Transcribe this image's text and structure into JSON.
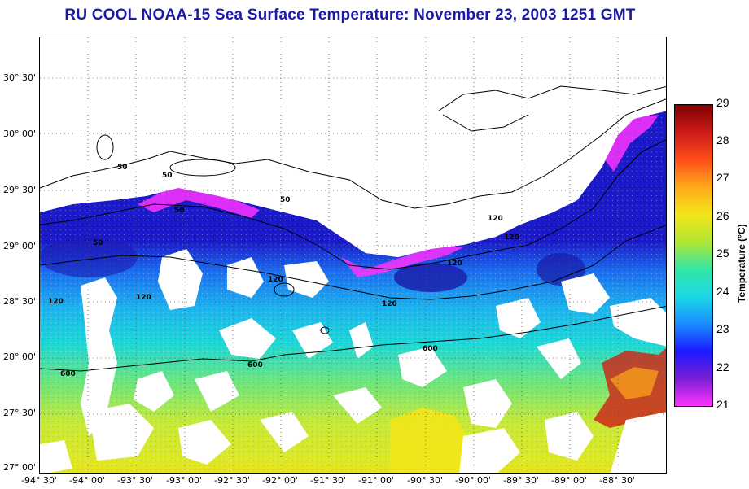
{
  "title": "RU COOL  NOAA-15  Sea Surface Temperature:  November 23, 2003 1251 GMT",
  "map": {
    "lat_labels": [
      "30° 30'",
      "30° 00'",
      "29° 30'",
      "29° 00'",
      "28° 30'",
      "28° 00'",
      "27° 30'",
      "27° 00'"
    ],
    "lon_labels": [
      "-94° 30'",
      "-94° 00'",
      "-93° 30'",
      "-93° 00'",
      "-92° 30'",
      "-92° 00'",
      "-91° 30'",
      "-91° 00'",
      "-90° 30'",
      "-90° 00'",
      "-89° 30'",
      "-89° 00'",
      "-88° 30'"
    ],
    "contour_labels": [
      "50",
      "50",
      "50",
      "50",
      "50",
      "120",
      "120",
      "120",
      "120",
      "120",
      "120",
      "120",
      "600",
      "600",
      "600"
    ],
    "land_color": "#ffffff",
    "cloud_color": "#ffffff"
  },
  "colorbar": {
    "title": "Temperature (°C)",
    "ticks": [
      "29",
      "28",
      "27",
      "26",
      "25",
      "24",
      "23",
      "22",
      "21"
    ],
    "colors": [
      "#ff33ff",
      "#7a1fd6",
      "#1a1aff",
      "#1a8cff",
      "#1ad9e6",
      "#33e6a6",
      "#b3e633",
      "#f2e61a",
      "#ffaa1a",
      "#ff4d1a",
      "#cc1a1a",
      "#800000"
    ]
  }
}
